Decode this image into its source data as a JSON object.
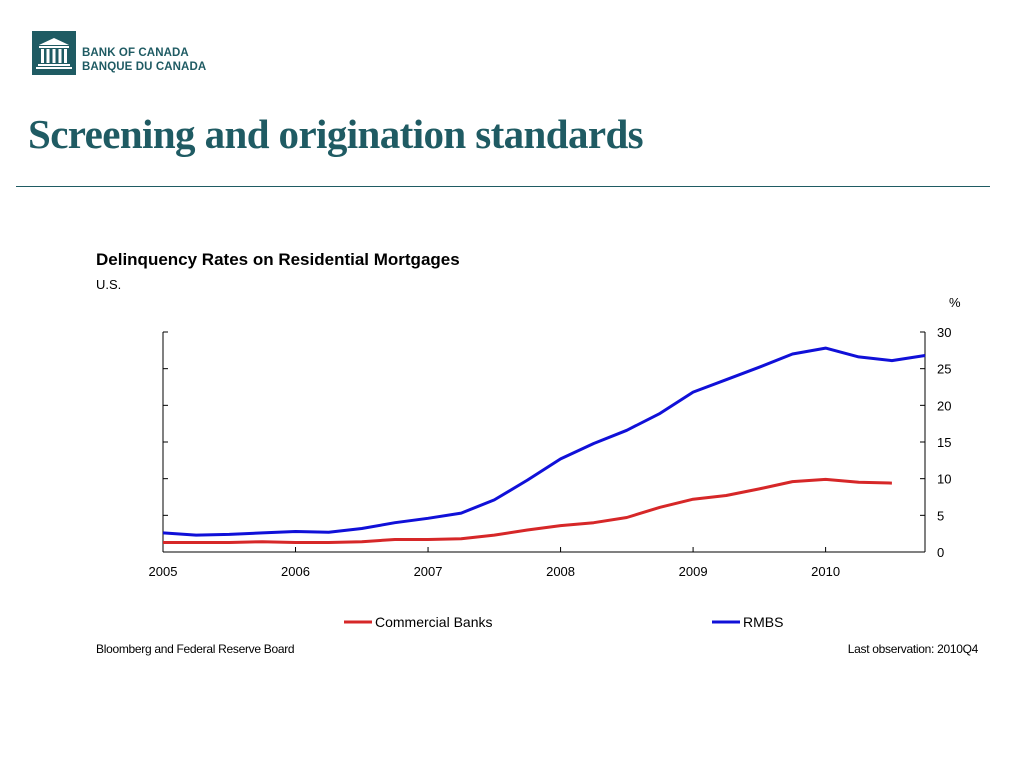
{
  "logo": {
    "line1": "BANK OF CANADA",
    "line2": "BANQUE DU CANADA"
  },
  "slide_title": "Screening and origination standards",
  "colors": {
    "brand": "#1f5b63",
    "commercial_banks": "#d62728",
    "rmbs": "#1010d8"
  },
  "chart_data": {
    "type": "line",
    "title": "Delinquency Rates on Residential Mortgages",
    "subtitle": "U.S.",
    "y_unit": "%",
    "ylim": [
      0,
      30
    ],
    "y_ticks": [
      0,
      5,
      10,
      15,
      20,
      25,
      30
    ],
    "y_axis_side": "right",
    "xlim": [
      "2005Q1",
      "2010Q4"
    ],
    "x_tick_labels": [
      "2005",
      "2006",
      "2007",
      "2008",
      "2009",
      "2010"
    ],
    "grid": false,
    "legend_position": "bottom",
    "x": [
      "2005Q1",
      "2005Q2",
      "2005Q3",
      "2005Q4",
      "2006Q1",
      "2006Q2",
      "2006Q3",
      "2006Q4",
      "2007Q1",
      "2007Q2",
      "2007Q3",
      "2007Q4",
      "2008Q1",
      "2008Q2",
      "2008Q3",
      "2008Q4",
      "2009Q1",
      "2009Q2",
      "2009Q3",
      "2009Q4",
      "2010Q1",
      "2010Q2",
      "2010Q3",
      "2010Q4"
    ],
    "series": [
      {
        "name": "Commercial Banks",
        "values": [
          1.3,
          1.3,
          1.3,
          1.4,
          1.3,
          1.3,
          1.4,
          1.7,
          1.7,
          1.8,
          2.3,
          3.0,
          3.6,
          4.0,
          4.7,
          6.1,
          7.2,
          7.7,
          8.6,
          9.6,
          9.9,
          9.5,
          9.4,
          null
        ]
      },
      {
        "name": "RMBS",
        "values": [
          2.6,
          2.3,
          2.4,
          2.6,
          2.8,
          2.7,
          3.2,
          4.0,
          4.6,
          5.3,
          7.1,
          9.8,
          12.7,
          14.8,
          16.6,
          18.9,
          21.8,
          23.5,
          25.2,
          27.0,
          27.8,
          26.6,
          26.1,
          26.8
        ]
      }
    ]
  },
  "footer": {
    "source": "Bloomberg and Federal Reserve Board",
    "last_observation": "Last observation: 2010Q4"
  }
}
